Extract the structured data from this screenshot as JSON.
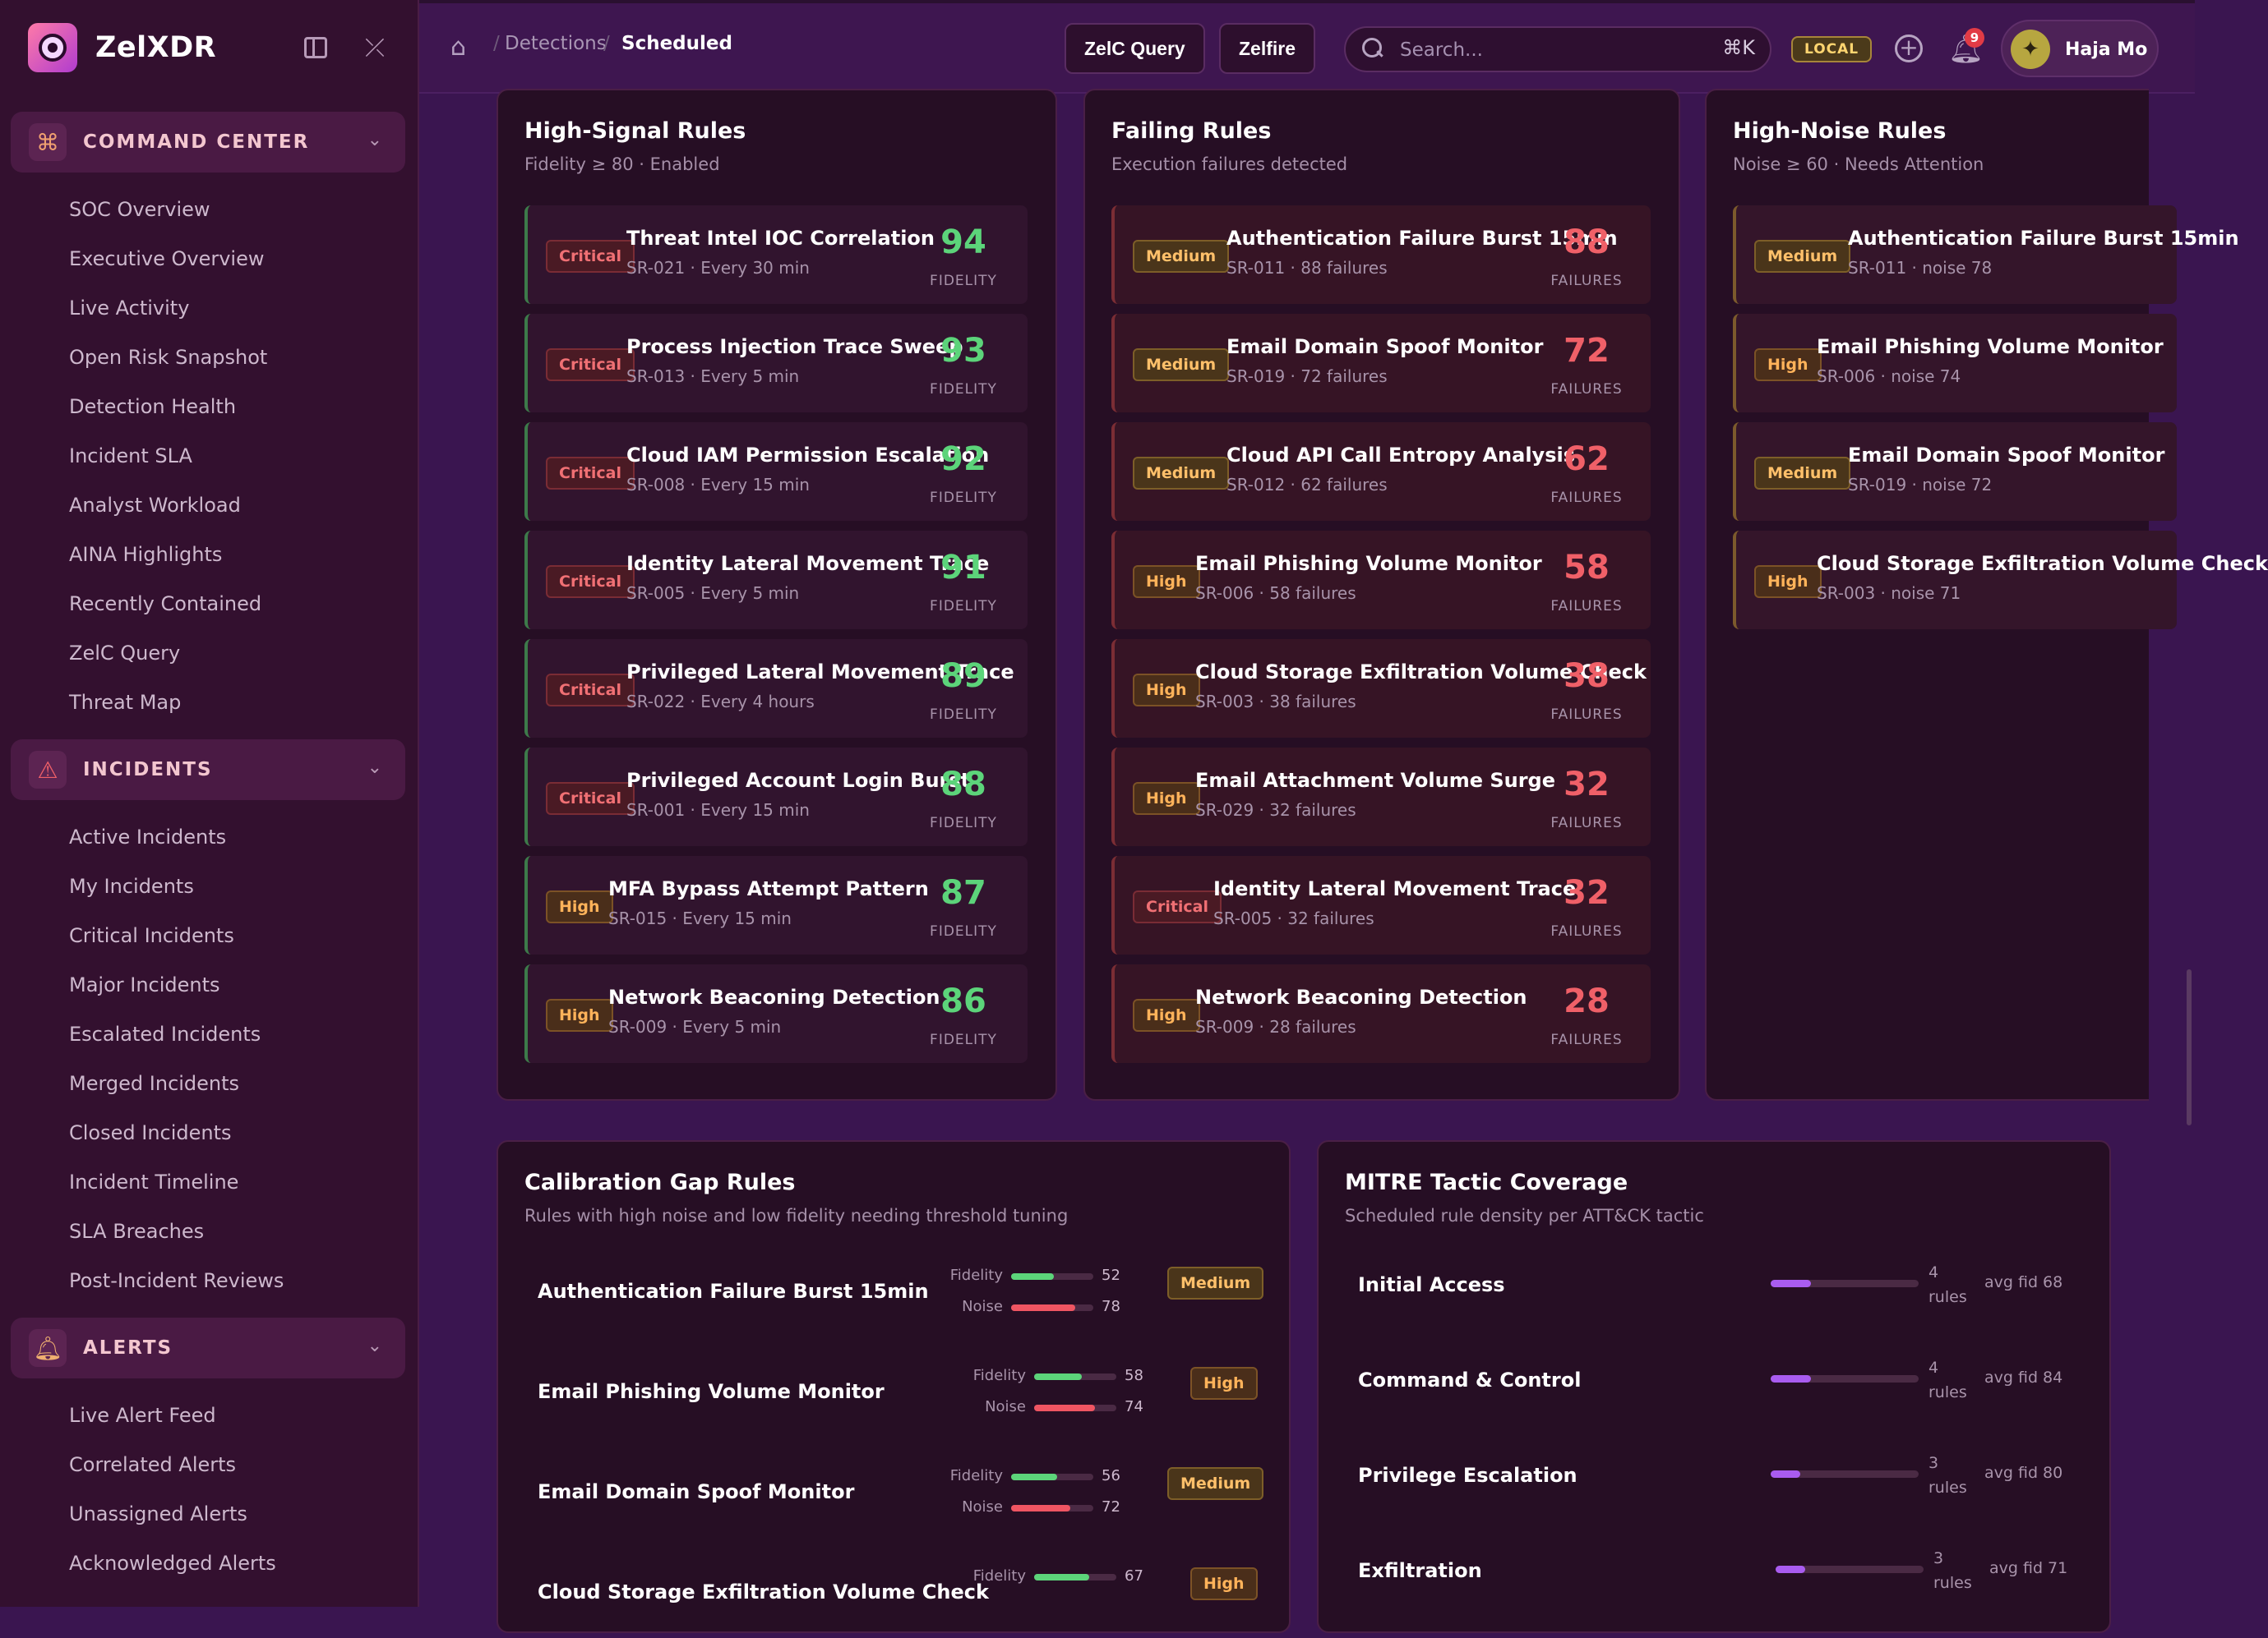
{
  "app": {
    "name": "ZelXDR"
  },
  "sidebar": {
    "sections": [
      {
        "label": "COMMAND CENTER",
        "icon": "command-icon",
        "items": [
          "SOC Overview",
          "Executive Overview",
          "Live Activity",
          "Open Risk Snapshot",
          "Detection Health",
          "Incident SLA",
          "Analyst Workload",
          "AINA Highlights",
          "Recently Contained",
          "ZelC Query",
          "Threat Map"
        ]
      },
      {
        "label": "INCIDENTS",
        "icon": "warning-triangle-icon",
        "items": [
          "Active Incidents",
          "My Incidents",
          "Critical Incidents",
          "Major Incidents",
          "Escalated Incidents",
          "Merged Incidents",
          "Closed Incidents",
          "Incident Timeline",
          "SLA Breaches",
          "Post-Incident Reviews"
        ]
      },
      {
        "label": "ALERTS",
        "icon": "bell-icon",
        "items": [
          "Live Alert Feed",
          "Correlated Alerts",
          "Unassigned Alerts",
          "Acknowledged Alerts"
        ]
      }
    ]
  },
  "topbar": {
    "breadcrumb": [
      "Detections",
      "Scheduled"
    ],
    "buttons": [
      "ZelC Query",
      "Zelfire"
    ],
    "search": {
      "placeholder": "Search...",
      "shortcut": "⌘K"
    },
    "env_badge": "LOCAL",
    "notification_count": "9",
    "user": {
      "name": "Haja Mo"
    }
  },
  "high_signal": {
    "title": "High-Signal Rules",
    "subtitle": "Fidelity ≥ 80 · Enabled",
    "score_label": "FIDELITY",
    "rules": [
      {
        "severity": "Critical",
        "name": "Threat Intel IOC Correlation",
        "meta": "SR-021 · Every 30 min",
        "score": "94"
      },
      {
        "severity": "Critical",
        "name": "Process Injection Trace Sweep",
        "meta": "SR-013 · Every 5 min",
        "score": "93"
      },
      {
        "severity": "Critical",
        "name": "Cloud IAM Permission Escalation",
        "meta": "SR-008 · Every 15 min",
        "score": "92"
      },
      {
        "severity": "Critical",
        "name": "Identity Lateral Movement Trace",
        "meta": "SR-005 · Every 5 min",
        "score": "91"
      },
      {
        "severity": "Critical",
        "name": "Privileged Lateral Movement Trace",
        "meta": "SR-022 · Every 4 hours",
        "score": "89"
      },
      {
        "severity": "Critical",
        "name": "Privileged Account Login Burst",
        "meta": "SR-001 · Every 15 min",
        "score": "88"
      },
      {
        "severity": "High",
        "name": "MFA Bypass Attempt Pattern",
        "meta": "SR-015 · Every 15 min",
        "score": "87"
      },
      {
        "severity": "High",
        "name": "Network Beaconing Detection",
        "meta": "SR-009 · Every 5 min",
        "score": "86"
      }
    ]
  },
  "failing": {
    "title": "Failing Rules",
    "subtitle": "Execution failures detected",
    "score_label": "FAILURES",
    "rules": [
      {
        "severity": "Medium",
        "name": "Authentication Failure Burst 15min",
        "meta": "SR-011 · 88 failures",
        "score": "88"
      },
      {
        "severity": "Medium",
        "name": "Email Domain Spoof Monitor",
        "meta": "SR-019 · 72 failures",
        "score": "72"
      },
      {
        "severity": "Medium",
        "name": "Cloud API Call Entropy Analysis",
        "meta": "SR-012 · 62 failures",
        "score": "62"
      },
      {
        "severity": "High",
        "name": "Email Phishing Volume Monitor",
        "meta": "SR-006 · 58 failures",
        "score": "58"
      },
      {
        "severity": "High",
        "name": "Cloud Storage Exfiltration Volume Check",
        "meta": "SR-003 · 38 failures",
        "score": "38"
      },
      {
        "severity": "High",
        "name": "Email Attachment Volume Surge",
        "meta": "SR-029 · 32 failures",
        "score": "32"
      },
      {
        "severity": "Critical",
        "name": "Identity Lateral Movement Trace",
        "meta": "SR-005 · 32 failures",
        "score": "32"
      },
      {
        "severity": "High",
        "name": "Network Beaconing Detection",
        "meta": "SR-009 · 28 failures",
        "score": "28"
      }
    ]
  },
  "high_noise": {
    "title": "High-Noise Rules",
    "subtitle": "Noise ≥ 60 · Needs Attention",
    "rules": [
      {
        "severity": "Medium",
        "name": "Authentication Failure Burst 15min",
        "meta": "SR-011 · noise 78"
      },
      {
        "severity": "High",
        "name": "Email Phishing Volume Monitor",
        "meta": "SR-006 · noise 74"
      },
      {
        "severity": "Medium",
        "name": "Email Domain Spoof Monitor",
        "meta": "SR-019 · noise 72"
      },
      {
        "severity": "High",
        "name": "Cloud Storage Exfiltration Volume Check",
        "meta": "SR-003 · noise 71"
      }
    ]
  },
  "calibration": {
    "title": "Calibration Gap Rules",
    "subtitle": "Rules with high noise and low fidelity needing threshold tuning",
    "fidelity_label": "Fidelity",
    "noise_label": "Noise",
    "rules": [
      {
        "name": "Authentication Failure Burst 15min",
        "fidelity": 52,
        "noise": 78,
        "severity": "Medium"
      },
      {
        "name": "Email Phishing Volume Monitor",
        "fidelity": 58,
        "noise": 74,
        "severity": "High"
      },
      {
        "name": "Email Domain Spoof Monitor",
        "fidelity": 56,
        "noise": 72,
        "severity": "Medium"
      },
      {
        "name": "Cloud Storage Exfiltration Volume Check",
        "fidelity": 67,
        "noise": null,
        "severity": "High"
      }
    ]
  },
  "mitre": {
    "title": "MITRE Tactic Coverage",
    "subtitle": "Scheduled rule density per ATT&CK tactic",
    "rules_word": "rules",
    "tactics": [
      {
        "name": "Initial Access",
        "count": "4",
        "fill_fraction": 0.27,
        "avg": "avg fid 68"
      },
      {
        "name": "Command & Control",
        "count": "4",
        "fill_fraction": 0.27,
        "avg": "avg fid 84"
      },
      {
        "name": "Privilege Escalation",
        "count": "3",
        "fill_fraction": 0.2,
        "avg": "avg fid 80"
      },
      {
        "name": "Exfiltration",
        "count": "3",
        "fill_fraction": 0.2,
        "avg": "avg fid 71"
      }
    ]
  },
  "colors": {
    "accent": "#a95cf0",
    "fidelity": "#5cd47a",
    "failure": "#f06068",
    "background": "#3a1550"
  }
}
